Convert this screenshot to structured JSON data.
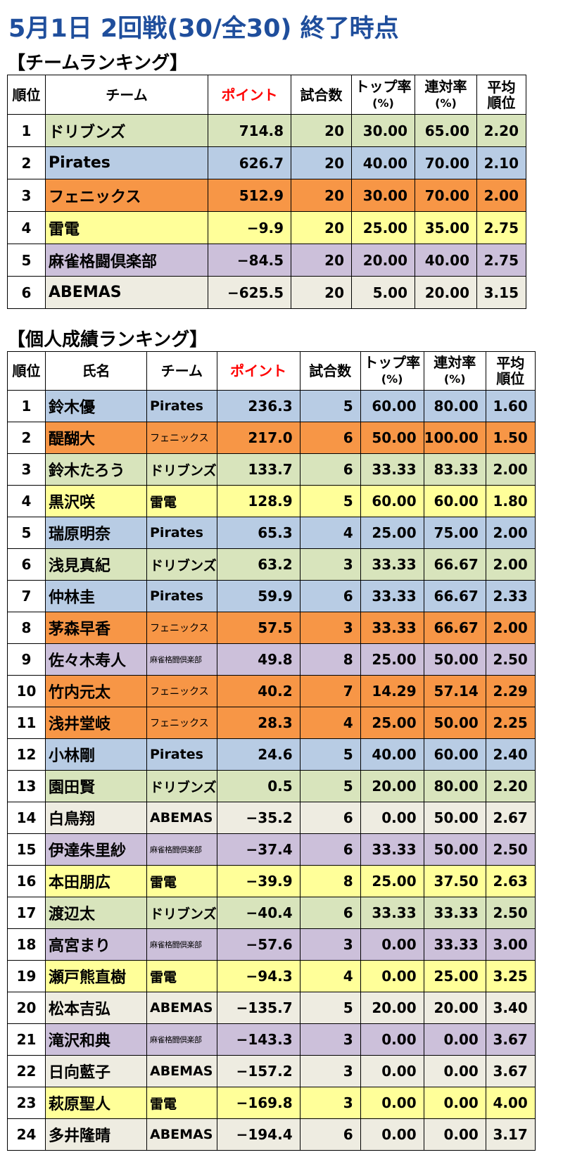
{
  "title": "5月1日 2回戦(30/全30) 終了時点",
  "team_section": {
    "title": "【チームランキング】",
    "headers": {
      "rank": "順位",
      "team": "チーム",
      "points": "ポイント",
      "games": "試合数",
      "top_rate_1": "トップ率",
      "top_rate_2": "(%)",
      "rentai_1": "連対率",
      "rentai_2": "(%)",
      "avg_1": "平均",
      "avg_2": "順位"
    },
    "rows": [
      {
        "rank": "1",
        "team": "ドリブンズ",
        "points": "714.8",
        "games": "20",
        "top": "30.00",
        "rentai": "65.00",
        "avg": "2.20",
        "color": "dribbles"
      },
      {
        "rank": "2",
        "team": "Pirates",
        "points": "626.7",
        "games": "20",
        "top": "40.00",
        "rentai": "70.00",
        "avg": "2.10",
        "color": "pirates"
      },
      {
        "rank": "3",
        "team": "フェニックス",
        "points": "512.9",
        "games": "20",
        "top": "30.00",
        "rentai": "70.00",
        "avg": "2.00",
        "color": "phoenix"
      },
      {
        "rank": "4",
        "team": "雷電",
        "points": "−9.9",
        "games": "20",
        "top": "25.00",
        "rentai": "35.00",
        "avg": "2.75",
        "color": "raiden"
      },
      {
        "rank": "5",
        "team": "麻雀格闘倶楽部",
        "points": "−84.5",
        "games": "20",
        "top": "20.00",
        "rentai": "40.00",
        "avg": "2.75",
        "color": "mahjong"
      },
      {
        "rank": "6",
        "team": "ABEMAS",
        "points": "−625.5",
        "games": "20",
        "top": "5.00",
        "rentai": "20.00",
        "avg": "3.15",
        "color": "abemas"
      }
    ]
  },
  "player_section": {
    "title": "【個人成績ランキング】",
    "headers": {
      "rank": "順位",
      "name": "氏名",
      "team": "チーム",
      "points": "ポイント",
      "games": "試合数",
      "top_rate_1": "トップ率",
      "top_rate_2": "(%)",
      "rentai_1": "連対率",
      "rentai_2": "(%)",
      "avg_1": "平均",
      "avg_2": "順位"
    },
    "rows": [
      {
        "rank": "1",
        "name": "鈴木優",
        "team": "Pirates",
        "points": "236.3",
        "games": "5",
        "top": "60.00",
        "rentai": "80.00",
        "avg": "1.60",
        "color": "pirates"
      },
      {
        "rank": "2",
        "name": "醍醐大",
        "team": "フェニックス",
        "points": "217.0",
        "games": "6",
        "top": "50.00",
        "rentai": "100.00",
        "avg": "1.50",
        "color": "phoenix"
      },
      {
        "rank": "3",
        "name": "鈴木たろう",
        "team": "ドリブンズ",
        "points": "133.7",
        "games": "6",
        "top": "33.33",
        "rentai": "83.33",
        "avg": "2.00",
        "color": "dribbles"
      },
      {
        "rank": "4",
        "name": "黒沢咲",
        "team": "雷電",
        "points": "128.9",
        "games": "5",
        "top": "60.00",
        "rentai": "60.00",
        "avg": "1.80",
        "color": "raiden"
      },
      {
        "rank": "5",
        "name": "瑞原明奈",
        "team": "Pirates",
        "points": "65.3",
        "games": "4",
        "top": "25.00",
        "rentai": "75.00",
        "avg": "2.00",
        "color": "pirates"
      },
      {
        "rank": "6",
        "name": "浅見真紀",
        "team": "ドリブンズ",
        "points": "63.2",
        "games": "3",
        "top": "33.33",
        "rentai": "66.67",
        "avg": "2.00",
        "color": "dribbles"
      },
      {
        "rank": "7",
        "name": "仲林圭",
        "team": "Pirates",
        "points": "59.9",
        "games": "6",
        "top": "33.33",
        "rentai": "66.67",
        "avg": "2.33",
        "color": "pirates"
      },
      {
        "rank": "8",
        "name": "茅森早香",
        "team": "フェニックス",
        "points": "57.5",
        "games": "3",
        "top": "33.33",
        "rentai": "66.67",
        "avg": "2.00",
        "color": "phoenix"
      },
      {
        "rank": "9",
        "name": "佐々木寿人",
        "team": "麻雀格闘倶楽部",
        "points": "49.8",
        "games": "8",
        "top": "25.00",
        "rentai": "50.00",
        "avg": "2.50",
        "color": "mahjong"
      },
      {
        "rank": "10",
        "name": "竹内元太",
        "team": "フェニックス",
        "points": "40.2",
        "games": "7",
        "top": "14.29",
        "rentai": "57.14",
        "avg": "2.29",
        "color": "phoenix"
      },
      {
        "rank": "11",
        "name": "浅井堂岐",
        "team": "フェニックス",
        "points": "28.3",
        "games": "4",
        "top": "25.00",
        "rentai": "50.00",
        "avg": "2.25",
        "color": "phoenix"
      },
      {
        "rank": "12",
        "name": "小林剛",
        "team": "Pirates",
        "points": "24.6",
        "games": "5",
        "top": "40.00",
        "rentai": "60.00",
        "avg": "2.40",
        "color": "pirates"
      },
      {
        "rank": "13",
        "name": "園田賢",
        "team": "ドリブンズ",
        "points": "0.5",
        "games": "5",
        "top": "20.00",
        "rentai": "80.00",
        "avg": "2.20",
        "color": "dribbles"
      },
      {
        "rank": "14",
        "name": "白鳥翔",
        "team": "ABEMAS",
        "points": "−35.2",
        "games": "6",
        "top": "0.00",
        "rentai": "50.00",
        "avg": "2.67",
        "color": "abemas"
      },
      {
        "rank": "15",
        "name": "伊達朱里紗",
        "team": "麻雀格闘倶楽部",
        "points": "−37.4",
        "games": "6",
        "top": "33.33",
        "rentai": "50.00",
        "avg": "2.50",
        "color": "mahjong"
      },
      {
        "rank": "16",
        "name": "本田朋広",
        "team": "雷電",
        "points": "−39.9",
        "games": "8",
        "top": "25.00",
        "rentai": "37.50",
        "avg": "2.63",
        "color": "raiden"
      },
      {
        "rank": "17",
        "name": "渡辺太",
        "team": "ドリブンズ",
        "points": "−40.4",
        "games": "6",
        "top": "33.33",
        "rentai": "33.33",
        "avg": "2.50",
        "color": "dribbles"
      },
      {
        "rank": "18",
        "name": "高宮まり",
        "team": "麻雀格闘倶楽部",
        "points": "−57.6",
        "games": "3",
        "top": "0.00",
        "rentai": "33.33",
        "avg": "3.00",
        "color": "mahjong"
      },
      {
        "rank": "19",
        "name": "瀬戸熊直樹",
        "team": "雷電",
        "points": "−94.3",
        "games": "4",
        "top": "0.00",
        "rentai": "25.00",
        "avg": "3.25",
        "color": "raiden"
      },
      {
        "rank": "20",
        "name": "松本吉弘",
        "team": "ABEMAS",
        "points": "−135.7",
        "games": "5",
        "top": "20.00",
        "rentai": "20.00",
        "avg": "3.40",
        "color": "abemas"
      },
      {
        "rank": "21",
        "name": "滝沢和典",
        "team": "麻雀格闘倶楽部",
        "points": "−143.3",
        "games": "3",
        "top": "0.00",
        "rentai": "0.00",
        "avg": "3.67",
        "color": "mahjong"
      },
      {
        "rank": "22",
        "name": "日向藍子",
        "team": "ABEMAS",
        "points": "−157.2",
        "games": "3",
        "top": "0.00",
        "rentai": "0.00",
        "avg": "3.67",
        "color": "abemas"
      },
      {
        "rank": "23",
        "name": "萩原聖人",
        "team": "雷電",
        "points": "−169.8",
        "games": "3",
        "top": "0.00",
        "rentai": "0.00",
        "avg": "4.00",
        "color": "raiden"
      },
      {
        "rank": "24",
        "name": "多井隆晴",
        "team": "ABEMAS",
        "points": "−194.4",
        "games": "6",
        "top": "0.00",
        "rentai": "0.00",
        "avg": "3.17",
        "color": "abemas"
      }
    ]
  },
  "team_colors": {
    "dribbles": "#d8e4bc",
    "pirates": "#b8cce4",
    "phoenix": "#f79646",
    "raiden": "#ffff99",
    "mahjong": "#ccc0da",
    "abemas": "#eeece1"
  },
  "title_color": "#1f4e9c",
  "point_header_color": "#ff0000"
}
